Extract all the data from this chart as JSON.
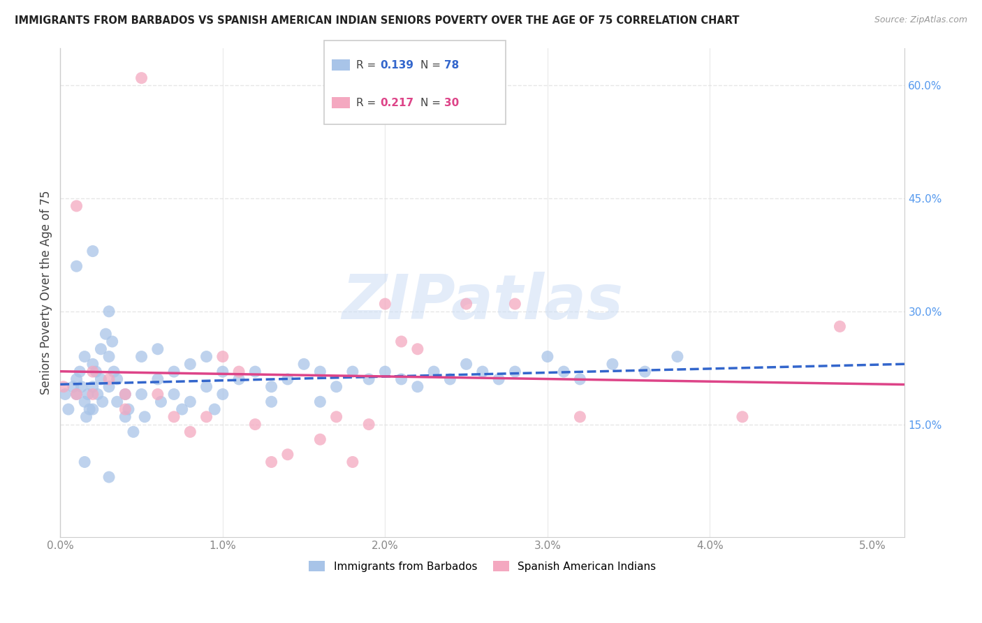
{
  "title": "IMMIGRANTS FROM BARBADOS VS SPANISH AMERICAN INDIAN SENIORS POVERTY OVER THE AGE OF 75 CORRELATION CHART",
  "source": "Source: ZipAtlas.com",
  "ylabel": "Seniors Poverty Over the Age of 75",
  "ylim": [
    0.0,
    0.65
  ],
  "xlim": [
    0.0,
    0.052
  ],
  "blue_R": 0.139,
  "blue_N": 78,
  "pink_R": 0.217,
  "pink_N": 30,
  "blue_color": "#a8c4e8",
  "pink_color": "#f4a8c0",
  "blue_line_color": "#3366cc",
  "pink_line_color": "#dd4488",
  "watermark_text": "ZIPatlas",
  "legend_entries": [
    "Immigrants from Barbados",
    "Spanish American Indians"
  ],
  "background_color": "#ffffff",
  "grid_color": "#e0e0e0",
  "x_ticks": [
    0.0,
    0.01,
    0.02,
    0.03,
    0.04,
    0.05
  ],
  "x_tick_labels": [
    "0.0%",
    "1.0%",
    "2.0%",
    "3.0%",
    "4.0%",
    "5.0%"
  ],
  "y_ticks_right": [
    0.15,
    0.3,
    0.45,
    0.6
  ],
  "y_tick_labels_right": [
    "15.0%",
    "30.0%",
    "45.0%",
    "60.0%"
  ],
  "blue_x": [
    0.0003,
    0.0005,
    0.0008,
    0.001,
    0.001,
    0.0012,
    0.0013,
    0.0015,
    0.0015,
    0.0016,
    0.0017,
    0.0018,
    0.002,
    0.002,
    0.002,
    0.0022,
    0.0023,
    0.0025,
    0.0025,
    0.0026,
    0.0028,
    0.003,
    0.003,
    0.003,
    0.0032,
    0.0033,
    0.0035,
    0.0035,
    0.004,
    0.004,
    0.0042,
    0.0045,
    0.005,
    0.005,
    0.0052,
    0.006,
    0.006,
    0.0062,
    0.007,
    0.007,
    0.0075,
    0.008,
    0.008,
    0.009,
    0.009,
    0.0095,
    0.01,
    0.01,
    0.011,
    0.012,
    0.013,
    0.013,
    0.014,
    0.015,
    0.016,
    0.016,
    0.017,
    0.018,
    0.019,
    0.02,
    0.021,
    0.022,
    0.023,
    0.024,
    0.025,
    0.026,
    0.027,
    0.028,
    0.03,
    0.031,
    0.032,
    0.034,
    0.036,
    0.038,
    0.001,
    0.002,
    0.0015,
    0.003
  ],
  "blue_y": [
    0.19,
    0.17,
    0.2,
    0.21,
    0.19,
    0.22,
    0.2,
    0.24,
    0.18,
    0.16,
    0.19,
    0.17,
    0.23,
    0.2,
    0.17,
    0.22,
    0.19,
    0.25,
    0.21,
    0.18,
    0.27,
    0.3,
    0.24,
    0.2,
    0.26,
    0.22,
    0.21,
    0.18,
    0.19,
    0.16,
    0.17,
    0.14,
    0.24,
    0.19,
    0.16,
    0.25,
    0.21,
    0.18,
    0.22,
    0.19,
    0.17,
    0.23,
    0.18,
    0.24,
    0.2,
    0.17,
    0.22,
    0.19,
    0.21,
    0.22,
    0.2,
    0.18,
    0.21,
    0.23,
    0.22,
    0.18,
    0.2,
    0.22,
    0.21,
    0.22,
    0.21,
    0.2,
    0.22,
    0.21,
    0.23,
    0.22,
    0.21,
    0.22,
    0.24,
    0.22,
    0.21,
    0.23,
    0.22,
    0.24,
    0.36,
    0.38,
    0.1,
    0.08
  ],
  "pink_x": [
    0.0002,
    0.001,
    0.001,
    0.002,
    0.002,
    0.003,
    0.004,
    0.004,
    0.005,
    0.006,
    0.007,
    0.008,
    0.009,
    0.01,
    0.011,
    0.012,
    0.013,
    0.014,
    0.016,
    0.017,
    0.018,
    0.019,
    0.02,
    0.021,
    0.022,
    0.025,
    0.028,
    0.032,
    0.042,
    0.048
  ],
  "pink_y": [
    0.2,
    0.44,
    0.19,
    0.22,
    0.19,
    0.21,
    0.19,
    0.17,
    0.61,
    0.19,
    0.16,
    0.14,
    0.16,
    0.24,
    0.22,
    0.15,
    0.1,
    0.11,
    0.13,
    0.16,
    0.1,
    0.15,
    0.31,
    0.26,
    0.25,
    0.31,
    0.31,
    0.16,
    0.16,
    0.28
  ]
}
